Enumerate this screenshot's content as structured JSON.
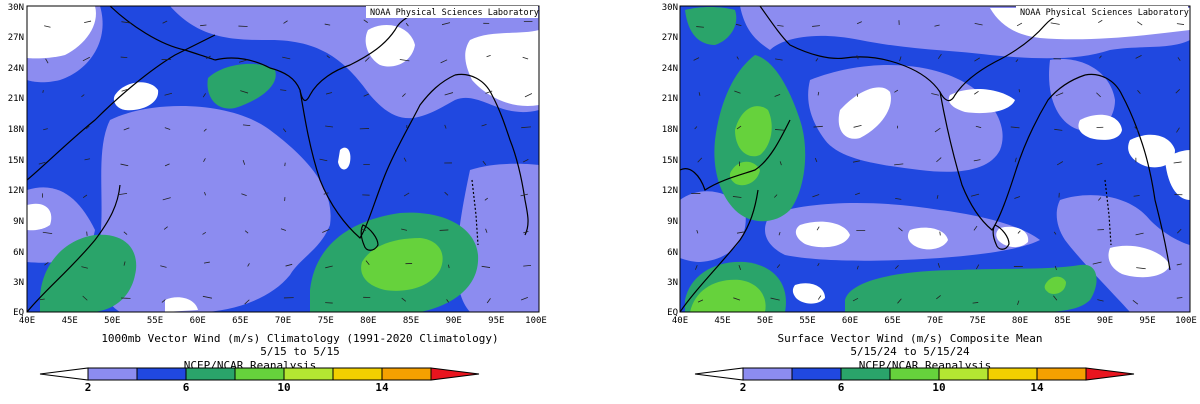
{
  "colors": {
    "lt2": "#ffffff",
    "c2_4": "#8c8cf0",
    "c4_6": "#2048e0",
    "c6_8": "#2aa46a",
    "c8_10": "#66d23c",
    "c10_12": "#b4e632",
    "c12_14": "#f2d000",
    "c14_16": "#f5a000",
    "gt16": "#e8141e"
  },
  "legend": {
    "ticks": [
      "2",
      "6",
      "10",
      "14"
    ],
    "source": "NCEP/NCAR Reanalysis"
  },
  "panels": [
    {
      "credit": "NOAA Physical Sciences Laboratory",
      "title_line1": "1000mb Vector Wind (m/s) Climatology (1991-2020 Climatology)",
      "title_line2": "5/15  to 5/15",
      "lon_labels": [
        "40E",
        "45E",
        "50E",
        "55E",
        "60E",
        "65E",
        "70E",
        "75E",
        "80E",
        "85E",
        "90E",
        "95E",
        "100E"
      ],
      "lat_labels": [
        "EQ",
        "3N",
        "6N",
        "9N",
        "12N",
        "15N",
        "18N",
        "21N",
        "24N",
        "27N",
        "30N"
      ]
    },
    {
      "credit": "NOAA Physical Sciences Laboratory",
      "title_line1": "Surface Vector Wind (m/s) Composite Mean",
      "title_line2": "5/15/24  to 5/15/24",
      "lon_labels": [
        "40E",
        "45E",
        "50E",
        "55E",
        "60E",
        "65E",
        "70E",
        "75E",
        "80E",
        "85E",
        "90E",
        "95E",
        "100E"
      ],
      "lat_labels": [
        "EQ",
        "3N",
        "6N",
        "9N",
        "12N",
        "15N",
        "18N",
        "21N",
        "24N",
        "27N",
        "30N"
      ]
    }
  ]
}
